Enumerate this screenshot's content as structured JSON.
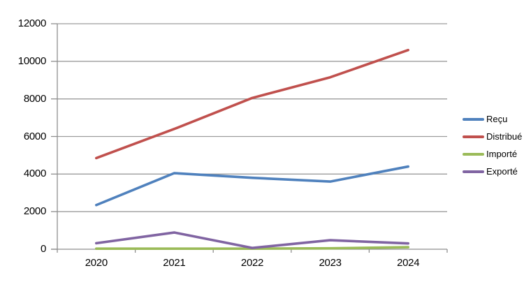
{
  "chart_data": {
    "type": "line",
    "title": "",
    "xlabel": "",
    "ylabel": "",
    "categories": [
      "2020",
      "2021",
      "2022",
      "2023",
      "2024"
    ],
    "series": [
      {
        "name": "Reçu",
        "color": "#4F81BD",
        "values": [
          2350,
          4050,
          3800,
          3600,
          4400
        ]
      },
      {
        "name": "Distribué",
        "color": "#C0504D",
        "values": [
          4850,
          6400,
          8050,
          9150,
          10600
        ]
      },
      {
        "name": "Importé",
        "color": "#9BBB59",
        "values": [
          30,
          30,
          30,
          50,
          110
        ]
      },
      {
        "name": "Exporté",
        "color": "#8064A2",
        "values": [
          320,
          890,
          70,
          480,
          310
        ]
      }
    ],
    "y_axis": {
      "min": 0,
      "max": 12000,
      "step": 2000,
      "tick_labels": [
        "0",
        "2000",
        "4000",
        "6000",
        "8000",
        "10000",
        "12000"
      ]
    },
    "grid": "horizontal",
    "legend_position": "right",
    "colors": {
      "gridline": "#9c9c9c",
      "axis": "#8e8e8e",
      "background": "#ffffff",
      "text": "#000000"
    }
  }
}
